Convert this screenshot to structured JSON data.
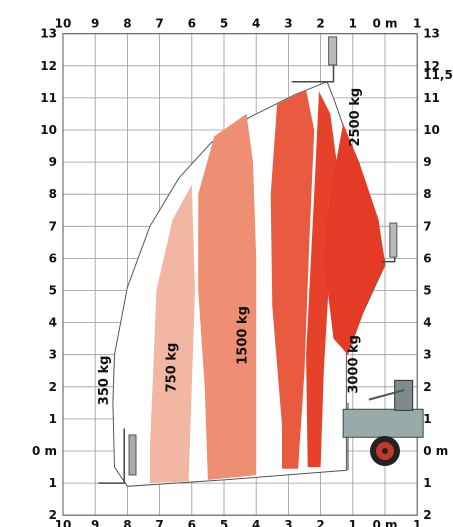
{
  "chart_data": {
    "type": "load-chart",
    "title": "",
    "x_axis": {
      "unit_label": "0 m",
      "range": [
        -10,
        1
      ],
      "ticks": [
        {
          "v": -10,
          "label": "10"
        },
        {
          "v": -9,
          "label": "9"
        },
        {
          "v": -8,
          "label": "8"
        },
        {
          "v": -7,
          "label": "7"
        },
        {
          "v": -6,
          "label": "6"
        },
        {
          "v": -5,
          "label": "5"
        },
        {
          "v": -4,
          "label": "4"
        },
        {
          "v": -3,
          "label": "3"
        },
        {
          "v": -2,
          "label": "2"
        },
        {
          "v": -1,
          "label": "1"
        },
        {
          "v": 0,
          "label": "0 m"
        },
        {
          "v": 1,
          "label": "1"
        }
      ]
    },
    "y_axis": {
      "range": [
        -2,
        13
      ],
      "left_ticks": [
        {
          "v": 13,
          "label": "13"
        },
        {
          "v": 12,
          "label": "12"
        },
        {
          "v": 11,
          "label": "11"
        },
        {
          "v": 10,
          "label": "10"
        },
        {
          "v": 9,
          "label": "9"
        },
        {
          "v": 8,
          "label": "8"
        },
        {
          "v": 7,
          "label": "7"
        },
        {
          "v": 6,
          "label": "6"
        },
        {
          "v": 5,
          "label": "5"
        },
        {
          "v": 4,
          "label": "4"
        },
        {
          "v": 3,
          "label": "3"
        },
        {
          "v": 2,
          "label": "2"
        },
        {
          "v": 1,
          "label": "1"
        },
        {
          "v": 0,
          "label": "0 m"
        },
        {
          "v": -1,
          "label": "1"
        },
        {
          "v": -2,
          "label": "2"
        }
      ],
      "right_ticks": [
        {
          "v": 13,
          "label": "13"
        },
        {
          "v": 12,
          "label": "12"
        },
        {
          "v": 11.53,
          "label": "11,53"
        },
        {
          "v": 11,
          "label": "11"
        },
        {
          "v": 10,
          "label": "10"
        },
        {
          "v": 9,
          "label": "9"
        },
        {
          "v": 8,
          "label": "8"
        },
        {
          "v": 7,
          "label": "7"
        },
        {
          "v": 6,
          "label": "6"
        },
        {
          "v": 5,
          "label": "5"
        },
        {
          "v": 4,
          "label": "4"
        },
        {
          "v": 3,
          "label": "3"
        },
        {
          "v": 2,
          "label": "2"
        },
        {
          "v": 1,
          "label": "1"
        },
        {
          "v": 0,
          "label": "0 m"
        },
        {
          "v": -1,
          "label": "1"
        },
        {
          "v": -2,
          "label": "2"
        }
      ]
    },
    "max_height_m": 11.53,
    "envelope": [
      [
        -1.8,
        11.5
      ],
      [
        -2.8,
        11.1
      ],
      [
        -4.2,
        10.4
      ],
      [
        -5.4,
        9.6
      ],
      [
        -6.4,
        8.5
      ],
      [
        -7.3,
        7.0
      ],
      [
        -8.0,
        5.1
      ],
      [
        -8.4,
        3.0
      ],
      [
        -8.45,
        1.5
      ],
      [
        -8.4,
        -0.5
      ],
      [
        -8.0,
        -1.1
      ],
      [
        -5.0,
        -0.9
      ],
      [
        -1.2,
        -0.6
      ],
      [
        -1.2,
        3.2
      ],
      [
        0.0,
        5.8
      ],
      [
        -0.2,
        7.0
      ],
      [
        -0.9,
        9.0
      ],
      [
        -1.6,
        11.0
      ]
    ],
    "load_zones": [
      {
        "name": "350 kg",
        "color": "#f2b7a3",
        "polygon": [
          [
            -6.0,
            8.3
          ],
          [
            -6.6,
            7.2
          ],
          [
            -7.1,
            5.0
          ],
          [
            -7.2,
            2.5
          ],
          [
            -7.3,
            0.1
          ],
          [
            -7.3,
            -1.0
          ],
          [
            -6.1,
            -0.95
          ],
          [
            -6.0,
            2.0
          ],
          [
            -5.9,
            5.0
          ]
        ],
        "label_pos": [
          -8.6,
          2.4
        ]
      },
      {
        "name": "750 kg",
        "color": "#ee8f74",
        "polygon": [
          [
            -4.3,
            10.5
          ],
          [
            -5.3,
            9.8
          ],
          [
            -5.8,
            8.0
          ],
          [
            -5.8,
            5.0
          ],
          [
            -5.6,
            2.0
          ],
          [
            -5.5,
            -0.9
          ],
          [
            -4.0,
            -0.75
          ],
          [
            -4.0,
            2.5
          ],
          [
            -4.0,
            6.0
          ],
          [
            -4.1,
            9.0
          ]
        ],
        "label_pos": [
          -6.5,
          2.6
        ]
      },
      {
        "name": "1500 kg",
        "color": "#e95b41",
        "polygon": [
          [
            -2.45,
            11.25
          ],
          [
            -3.35,
            10.8
          ],
          [
            -3.55,
            8.0
          ],
          [
            -3.5,
            4.5
          ],
          [
            -3.2,
            0.8
          ],
          [
            -3.2,
            -0.55
          ],
          [
            -2.7,
            -0.55
          ],
          [
            -2.5,
            2.5
          ],
          [
            -2.35,
            6.5
          ],
          [
            -2.2,
            10.0
          ]
        ],
        "label_pos": [
          -4.3,
          3.6
        ]
      },
      {
        "name": "3000 kg",
        "color": "#e6412a",
        "polygon": [
          [
            -2.05,
            11.2
          ],
          [
            -2.2,
            8.0
          ],
          [
            -2.45,
            3.0
          ],
          [
            -2.4,
            -0.5
          ],
          [
            -2.0,
            -0.5
          ],
          [
            -1.9,
            2.5
          ],
          [
            -1.7,
            6.0
          ],
          [
            -1.5,
            9.0
          ],
          [
            -1.7,
            10.5
          ]
        ],
        "label_pos": [
          -0.9,
          2.6
        ]
      },
      {
        "name": "2500 kg",
        "color": "#e33b25",
        "polygon": [
          [
            -1.3,
            10.2
          ],
          [
            -1.7,
            8.0
          ],
          [
            -1.9,
            6.0
          ],
          [
            -1.6,
            3.5
          ],
          [
            -1.15,
            3.0
          ],
          [
            -0.6,
            4.5
          ],
          [
            0.0,
            5.8
          ],
          [
            -0.2,
            7.2
          ],
          [
            -0.8,
            9.0
          ]
        ],
        "label_pos": [
          -0.8,
          10.4
        ]
      }
    ],
    "annotations": [
      {
        "text": "350 kg",
        "x": -8.6,
        "y": 2.2
      },
      {
        "text": "750 kg",
        "x": -6.5,
        "y": 2.6
      },
      {
        "text": "1500 kg",
        "x": -4.3,
        "y": 3.6
      },
      {
        "text": "3000 kg",
        "x": -0.85,
        "y": 2.7
      },
      {
        "text": "2500 kg",
        "x": -0.8,
        "y": 10.4
      }
    ],
    "grid": true
  }
}
